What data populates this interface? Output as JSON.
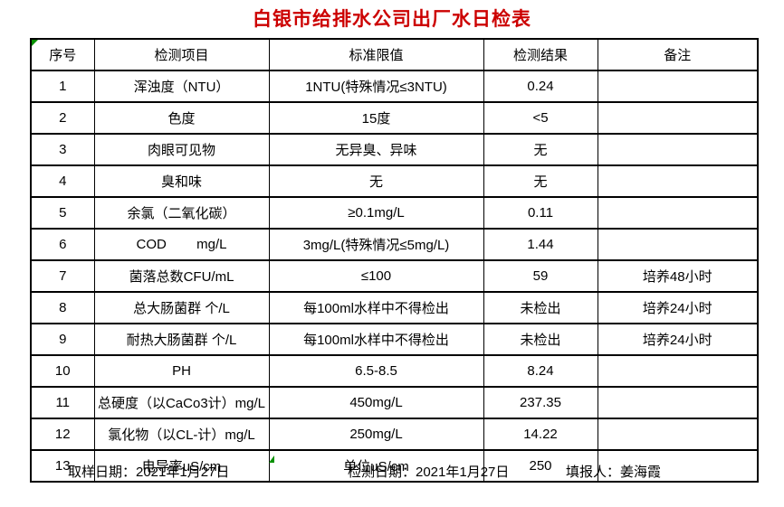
{
  "title": "白银市给排水公司出厂水日检表",
  "title_color": "#cc0000",
  "marker_color": "#089000",
  "table": {
    "headers": [
      "序号",
      "检测项目",
      "标准限值",
      "检测结果",
      "备注"
    ],
    "rows": [
      {
        "no": "1",
        "item": "浑浊度（NTU）",
        "limit": "1NTU(特殊情况≤3NTU)",
        "result": "0.24",
        "note": ""
      },
      {
        "no": "2",
        "item": "色度",
        "limit": "15度",
        "result": "<5",
        "note": ""
      },
      {
        "no": "3",
        "item": "肉眼可见物",
        "limit": "无异臭、异味",
        "result": "无",
        "note": ""
      },
      {
        "no": "4",
        "item": "臭和味",
        "limit": "无",
        "result": "无",
        "note": ""
      },
      {
        "no": "5",
        "item": "余氯（二氧化碳）",
        "limit": "≥0.1mg/L",
        "result": "0.11",
        "note": ""
      },
      {
        "no": "6",
        "item": "COD        mg/L",
        "limit": "3mg/L(特殊情况≤5mg/L)",
        "result": "1.44",
        "note": ""
      },
      {
        "no": "7",
        "item": "菌落总数CFU/mL",
        "limit": "≤100",
        "result": "59",
        "note": "培养48小时"
      },
      {
        "no": "8",
        "item": "总大肠菌群 个/L",
        "limit": "每100ml水样中不得检出",
        "result": "未检出",
        "note": "培养24小时"
      },
      {
        "no": "9",
        "item": "耐热大肠菌群 个/L",
        "limit": "每100ml水样中不得检出",
        "result": "未检出",
        "note": "培养24小时"
      },
      {
        "no": "10",
        "item": "PH",
        "limit": "6.5-8.5",
        "result": "8.24",
        "note": ""
      },
      {
        "no": "11",
        "item": "总硬度（以CaCo3计）mg/L",
        "limit": "450mg/L",
        "result": "237.35",
        "note": ""
      },
      {
        "no": "12",
        "item": "氯化物（以CL-计）mg/L",
        "limit": "250mg/L",
        "result": "14.22",
        "note": ""
      },
      {
        "no": "13",
        "item": "电导率uS/cm",
        "limit": "单位uS/cm",
        "result": "250",
        "note": ""
      }
    ]
  },
  "footer": {
    "sample_date": "取样日期：2021年1月27日",
    "test_date": "检测日期：2021年1月27日",
    "reporter": "填报人：姜海霞"
  }
}
